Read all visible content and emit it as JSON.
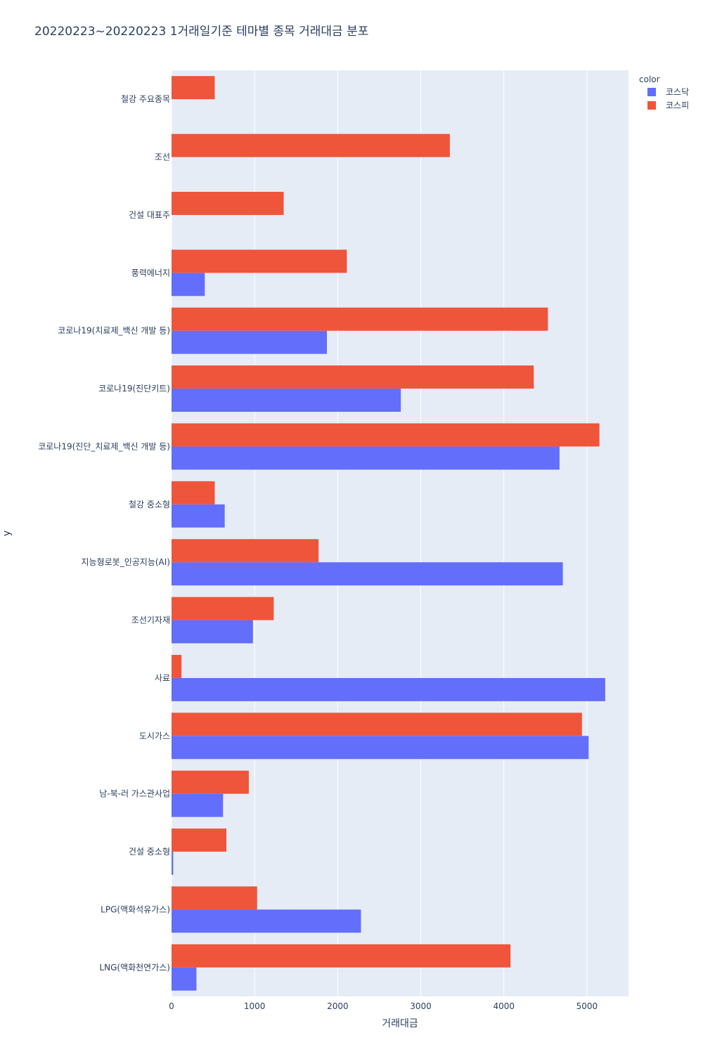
{
  "chart_data": {
    "type": "bar",
    "orientation": "horizontal",
    "barmode": "group",
    "title": "20220223~20220223 1거래일기준 테마별 종목 거래대금 분포",
    "xlabel": "거래대금",
    "ylabel": "y",
    "xlim": [
      0,
      5500
    ],
    "xticks": [
      0,
      1000,
      2000,
      3000,
      4000,
      5000
    ],
    "grid": true,
    "legend": {
      "title": "color",
      "placement": "top-right"
    },
    "categories": [
      "철강 주요종목",
      "조선",
      "건설 대표주",
      "풍력에너지",
      "코로나19(치료제_백신 개발 등)",
      "코로나19(진단키트)",
      "코로나19(진단_치료제_백신 개발 등)",
      "철강 중소형",
      "지능형로봇_인공지능(AI)",
      "조선기자재",
      "사료",
      "도시가스",
      "남-북-러 가스관사업",
      "건설 중소형",
      "LPG(액화석유가스)",
      "LNG(액화천연가스)"
    ],
    "series": [
      {
        "name": "코스닥",
        "color": "#636efa",
        "values": [
          null,
          null,
          null,
          400,
          1870,
          2760,
          4670,
          640,
          4710,
          980,
          5220,
          5020,
          620,
          20,
          2280,
          300
        ]
      },
      {
        "name": "코스피",
        "color": "#ef553b",
        "values": [
          520,
          3350,
          1350,
          2110,
          4530,
          4360,
          5150,
          520,
          1770,
          1230,
          120,
          4940,
          930,
          660,
          1030,
          4080
        ]
      }
    ]
  }
}
